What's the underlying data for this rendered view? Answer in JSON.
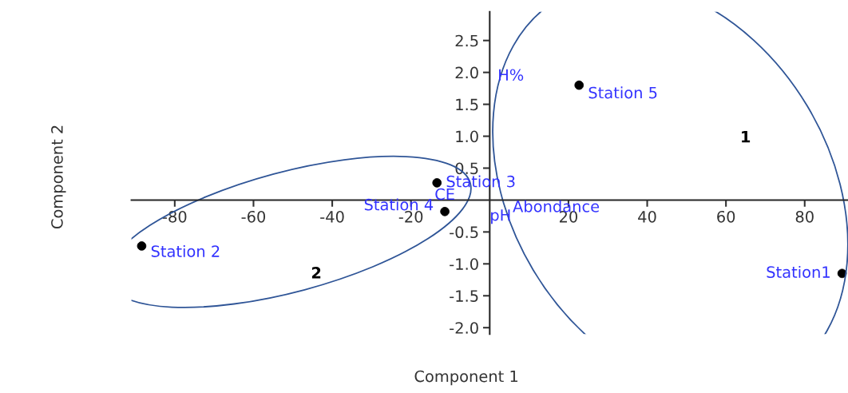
{
  "chart_data": {
    "type": "scatter",
    "xlabel": "Component 1",
    "ylabel": "Component 2",
    "x": [
      22.7,
      -13.4,
      -11.4,
      -88.4,
      89.5
    ],
    "series": [
      {
        "color": "#000000",
        "values": [
          1.8,
          0.27,
          -0.18,
          -0.72,
          -1.15
        ]
      }
    ],
    "marker": "circle",
    "xlim": [
      -91,
      91
    ],
    "ylim": [
      -2.1,
      2.95
    ],
    "xticks": [
      -80,
      -60,
      -40,
      -20,
      20,
      40,
      60,
      80
    ],
    "yticks": [
      {
        "value": -2,
        "label": "-2.0"
      },
      {
        "value": -1.5,
        "label": "-1.5"
      },
      {
        "value": -1,
        "label": "-1.0"
      },
      {
        "value": -0.5,
        "label": "-0.5"
      },
      {
        "value": 0.5,
        "label": "0.5"
      },
      {
        "value": 1,
        "label": "1.0"
      },
      {
        "value": 1.5,
        "label": "1.5"
      },
      {
        "value": 2,
        "label": "2.0"
      },
      {
        "value": 2.5,
        "label": "2.5"
      }
    ],
    "grid": false,
    "annotations": [
      {
        "text": "Station 5",
        "x": 22.7,
        "y": 1.8
      },
      {
        "text": "Station 3",
        "x": -13.4,
        "y": 0.27
      },
      {
        "text": "Station 4",
        "x": -11.4,
        "y": -0.18
      },
      {
        "text": "Station 2",
        "x": -88.4,
        "y": -0.72
      },
      {
        "text": "Station1",
        "x": 89.5,
        "y": -1.15
      },
      "H%",
      "CE",
      "pH",
      "Abondance",
      "1",
      "2"
    ]
  }
}
